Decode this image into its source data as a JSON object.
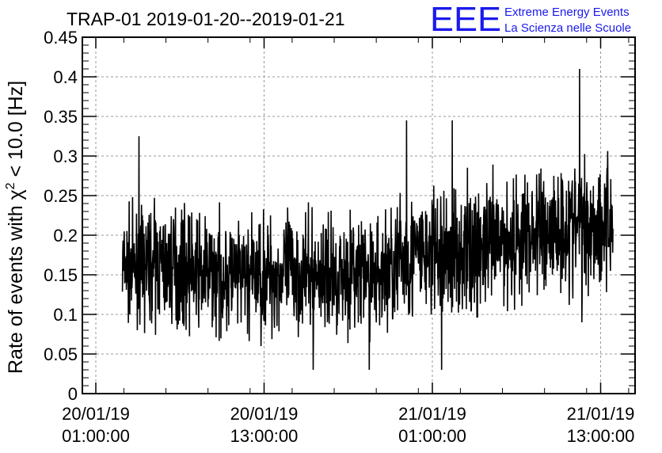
{
  "chart_data": {
    "type": "line",
    "title": "TRAP-01 2019-01-20--2019-01-21",
    "ylabel": "Rate of events with χ² < 10.0 [Hz]",
    "ylabel_parts": {
      "pre": "Rate of events with ",
      "chi": "χ",
      "sup": "2",
      "post": " < 10.0 [Hz]"
    },
    "xlabel": "",
    "ylim": [
      0,
      0.45
    ],
    "y_ticks": [
      "0",
      "0.05",
      "0.1",
      "0.15",
      "0.2",
      "0.25",
      "0.3",
      "0.35",
      "0.4",
      "0.45"
    ],
    "x_ticks": [
      {
        "date": "20/01/19",
        "time": "01:00:00"
      },
      {
        "date": "20/01/19",
        "time": "13:00:00"
      },
      {
        "date": "21/01/19",
        "time": "01:00:00"
      },
      {
        "date": "21/01/19",
        "time": "13:00:00"
      }
    ],
    "xlim": [
      "2019-01-20 00:00",
      "2019-01-21 15:00"
    ],
    "grid": true,
    "series": [
      {
        "x": [
          "2019-01-20 03:00",
          "2019-01-20 04:00",
          "2019-01-20 05:00",
          "2019-01-20 06:00",
          "2019-01-20 07:00",
          "2019-01-20 08:00",
          "2019-01-20 09:00",
          "2019-01-20 10:00",
          "2019-01-20 11:00",
          "2019-01-20 12:00",
          "2019-01-20 13:00",
          "2019-01-20 14:00",
          "2019-01-20 15:00",
          "2019-01-20 16:00",
          "2019-01-20 17:00",
          "2019-01-20 18:00",
          "2019-01-20 19:00",
          "2019-01-20 20:00",
          "2019-01-20 21:00",
          "2019-01-20 22:00",
          "2019-01-20 23:00",
          "2019-01-21 00:00",
          "2019-01-21 01:00",
          "2019-01-21 02:00",
          "2019-01-21 03:00",
          "2019-01-21 04:00",
          "2019-01-21 05:00",
          "2019-01-21 06:00",
          "2019-01-21 07:00",
          "2019-01-21 08:00",
          "2019-01-21 09:00",
          "2019-01-21 10:00",
          "2019-01-21 11:00",
          "2019-01-21 12:00"
        ],
        "values": [
          0.16,
          0.155,
          0.165,
          0.16,
          0.16,
          0.155,
          0.15,
          0.15,
          0.145,
          0.15,
          0.15,
          0.15,
          0.155,
          0.15,
          0.15,
          0.15,
          0.155,
          0.15,
          0.15,
          0.16,
          0.17,
          0.175,
          0.175,
          0.175,
          0.18,
          0.18,
          0.185,
          0.19,
          0.195,
          0.2,
          0.205,
          0.21,
          0.21,
          0.215
        ],
        "band_low": [
          0.1,
          0.1,
          0.09,
          0.1,
          0.08,
          0.09,
          0.08,
          0.07,
          0.08,
          0.08,
          0.07,
          0.08,
          0.07,
          0.08,
          0.08,
          0.07,
          0.08,
          0.08,
          0.08,
          0.1,
          0.1,
          0.11,
          0.11,
          0.11,
          0.11,
          0.12,
          0.12,
          0.13,
          0.13,
          0.13,
          0.14,
          0.14,
          0.14,
          0.15
        ],
        "band_high": [
          0.24,
          0.24,
          0.25,
          0.25,
          0.24,
          0.24,
          0.23,
          0.23,
          0.23,
          0.23,
          0.24,
          0.23,
          0.24,
          0.23,
          0.23,
          0.23,
          0.24,
          0.24,
          0.24,
          0.27,
          0.28,
          0.28,
          0.28,
          0.29,
          0.29,
          0.3,
          0.3,
          0.3,
          0.31,
          0.31,
          0.32,
          0.32,
          0.33,
          0.33
        ],
        "spikes": [
          {
            "x": "2019-01-20 04:05",
            "y": 0.325
          },
          {
            "x": "2019-01-20 16:30",
            "y": 0.03
          },
          {
            "x": "2019-01-20 20:30",
            "y": 0.03
          },
          {
            "x": "2019-01-20 23:10",
            "y": 0.345
          },
          {
            "x": "2019-01-21 01:40",
            "y": 0.03
          },
          {
            "x": "2019-01-21 02:25",
            "y": 0.345
          },
          {
            "x": "2019-01-21 11:30",
            "y": 0.41
          },
          {
            "x": "2019-01-21 11:40",
            "y": 0.09
          },
          {
            "x": "2019-01-21 13:55",
            "y": 0.28
          }
        ]
      }
    ]
  },
  "logo": {
    "mark": "EEE",
    "line1": "Extreme Energy Events",
    "line2": "La Scienza nelle Scuole",
    "color": "#1a1aee"
  },
  "colors": {
    "line": "#000000",
    "grid": "#999999",
    "frame": "#000000"
  }
}
